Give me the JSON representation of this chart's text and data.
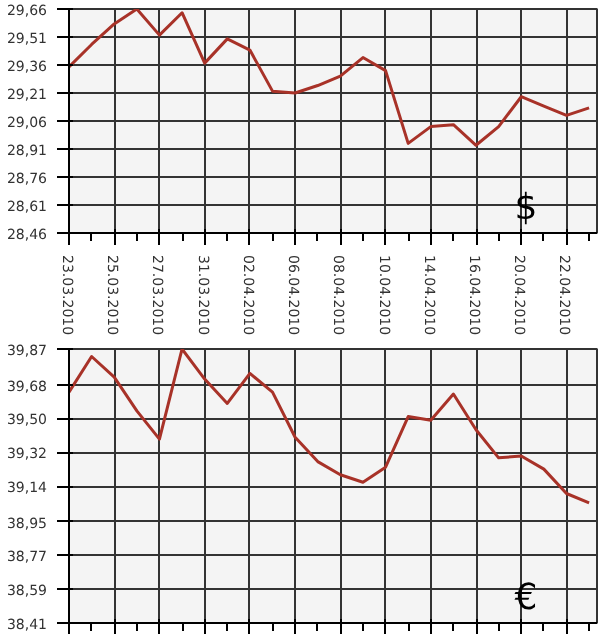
{
  "chart_data": [
    {
      "type": "line",
      "categories": [
        "23.03.2010",
        null,
        "25.03.2010",
        null,
        "27.03.2010",
        null,
        "31.03.2010",
        null,
        "02.04.2010",
        null,
        "06.04.2010",
        null,
        "08.04.2010",
        null,
        "10.04.2010",
        null,
        "14.04.2010",
        null,
        "16.04.2010",
        null,
        "20.04.2010",
        null,
        "22.04.2010",
        null
      ],
      "series": [
        {
          "color": "#a83228",
          "values": [
            29.35,
            29.47,
            29.58,
            29.66,
            29.52,
            29.64,
            29.37,
            29.5,
            29.44,
            29.22,
            29.21,
            29.25,
            29.3,
            29.4,
            29.33,
            28.94,
            29.03,
            29.04,
            28.93,
            29.03,
            29.19,
            29.14,
            29.09,
            29.13
          ]
        }
      ],
      "ylim": [
        28.46,
        29.66
      ],
      "yticks": [
        {
          "value": 28.46,
          "label": "28,46"
        },
        {
          "value": 28.61,
          "label": "28,61"
        },
        {
          "value": 28.76,
          "label": "28,76"
        },
        {
          "value": 28.91,
          "label": "28,91"
        },
        {
          "value": 29.06,
          "label": "29,06"
        },
        {
          "value": 29.21,
          "label": "29,21"
        },
        {
          "value": 29.36,
          "label": "29,36"
        },
        {
          "value": 29.51,
          "label": "29,51"
        },
        {
          "value": 29.66,
          "label": "29,66"
        }
      ],
      "grid": true,
      "marker": "none",
      "annotations": [
        "$"
      ]
    },
    {
      "type": "line",
      "categories": [
        null,
        null,
        null,
        null,
        null,
        null,
        null,
        null,
        null,
        null,
        null,
        null,
        null,
        null,
        null,
        null,
        null,
        null,
        null,
        null,
        null,
        null,
        null,
        null
      ],
      "series": [
        {
          "color": "#a83228",
          "values": [
            39.64,
            39.83,
            39.72,
            39.54,
            39.39,
            39.87,
            39.71,
            39.58,
            39.74,
            39.64,
            39.4,
            39.27,
            39.2,
            39.16,
            39.24,
            39.51,
            39.49,
            39.63,
            39.44,
            39.29,
            39.3,
            39.23,
            39.1,
            39.05
          ]
        }
      ],
      "ylim": [
        38.41,
        39.87
      ],
      "yticks": [
        {
          "value": 38.41,
          "label": "38,41"
        },
        {
          "value": 38.59,
          "label": "38,59"
        },
        {
          "value": 38.77,
          "label": "38,77"
        },
        {
          "value": 38.95,
          "label": "38,95"
        },
        {
          "value": 39.14,
          "label": "39,14"
        },
        {
          "value": 39.32,
          "label": "39,32"
        },
        {
          "value": 39.5,
          "label": "39,50"
        },
        {
          "value": 39.68,
          "label": "39,68"
        },
        {
          "value": 39.87,
          "label": "39,87"
        }
      ],
      "grid": true,
      "marker": "none",
      "tick_labels": "y",
      "annotations": [
        "€"
      ]
    }
  ]
}
